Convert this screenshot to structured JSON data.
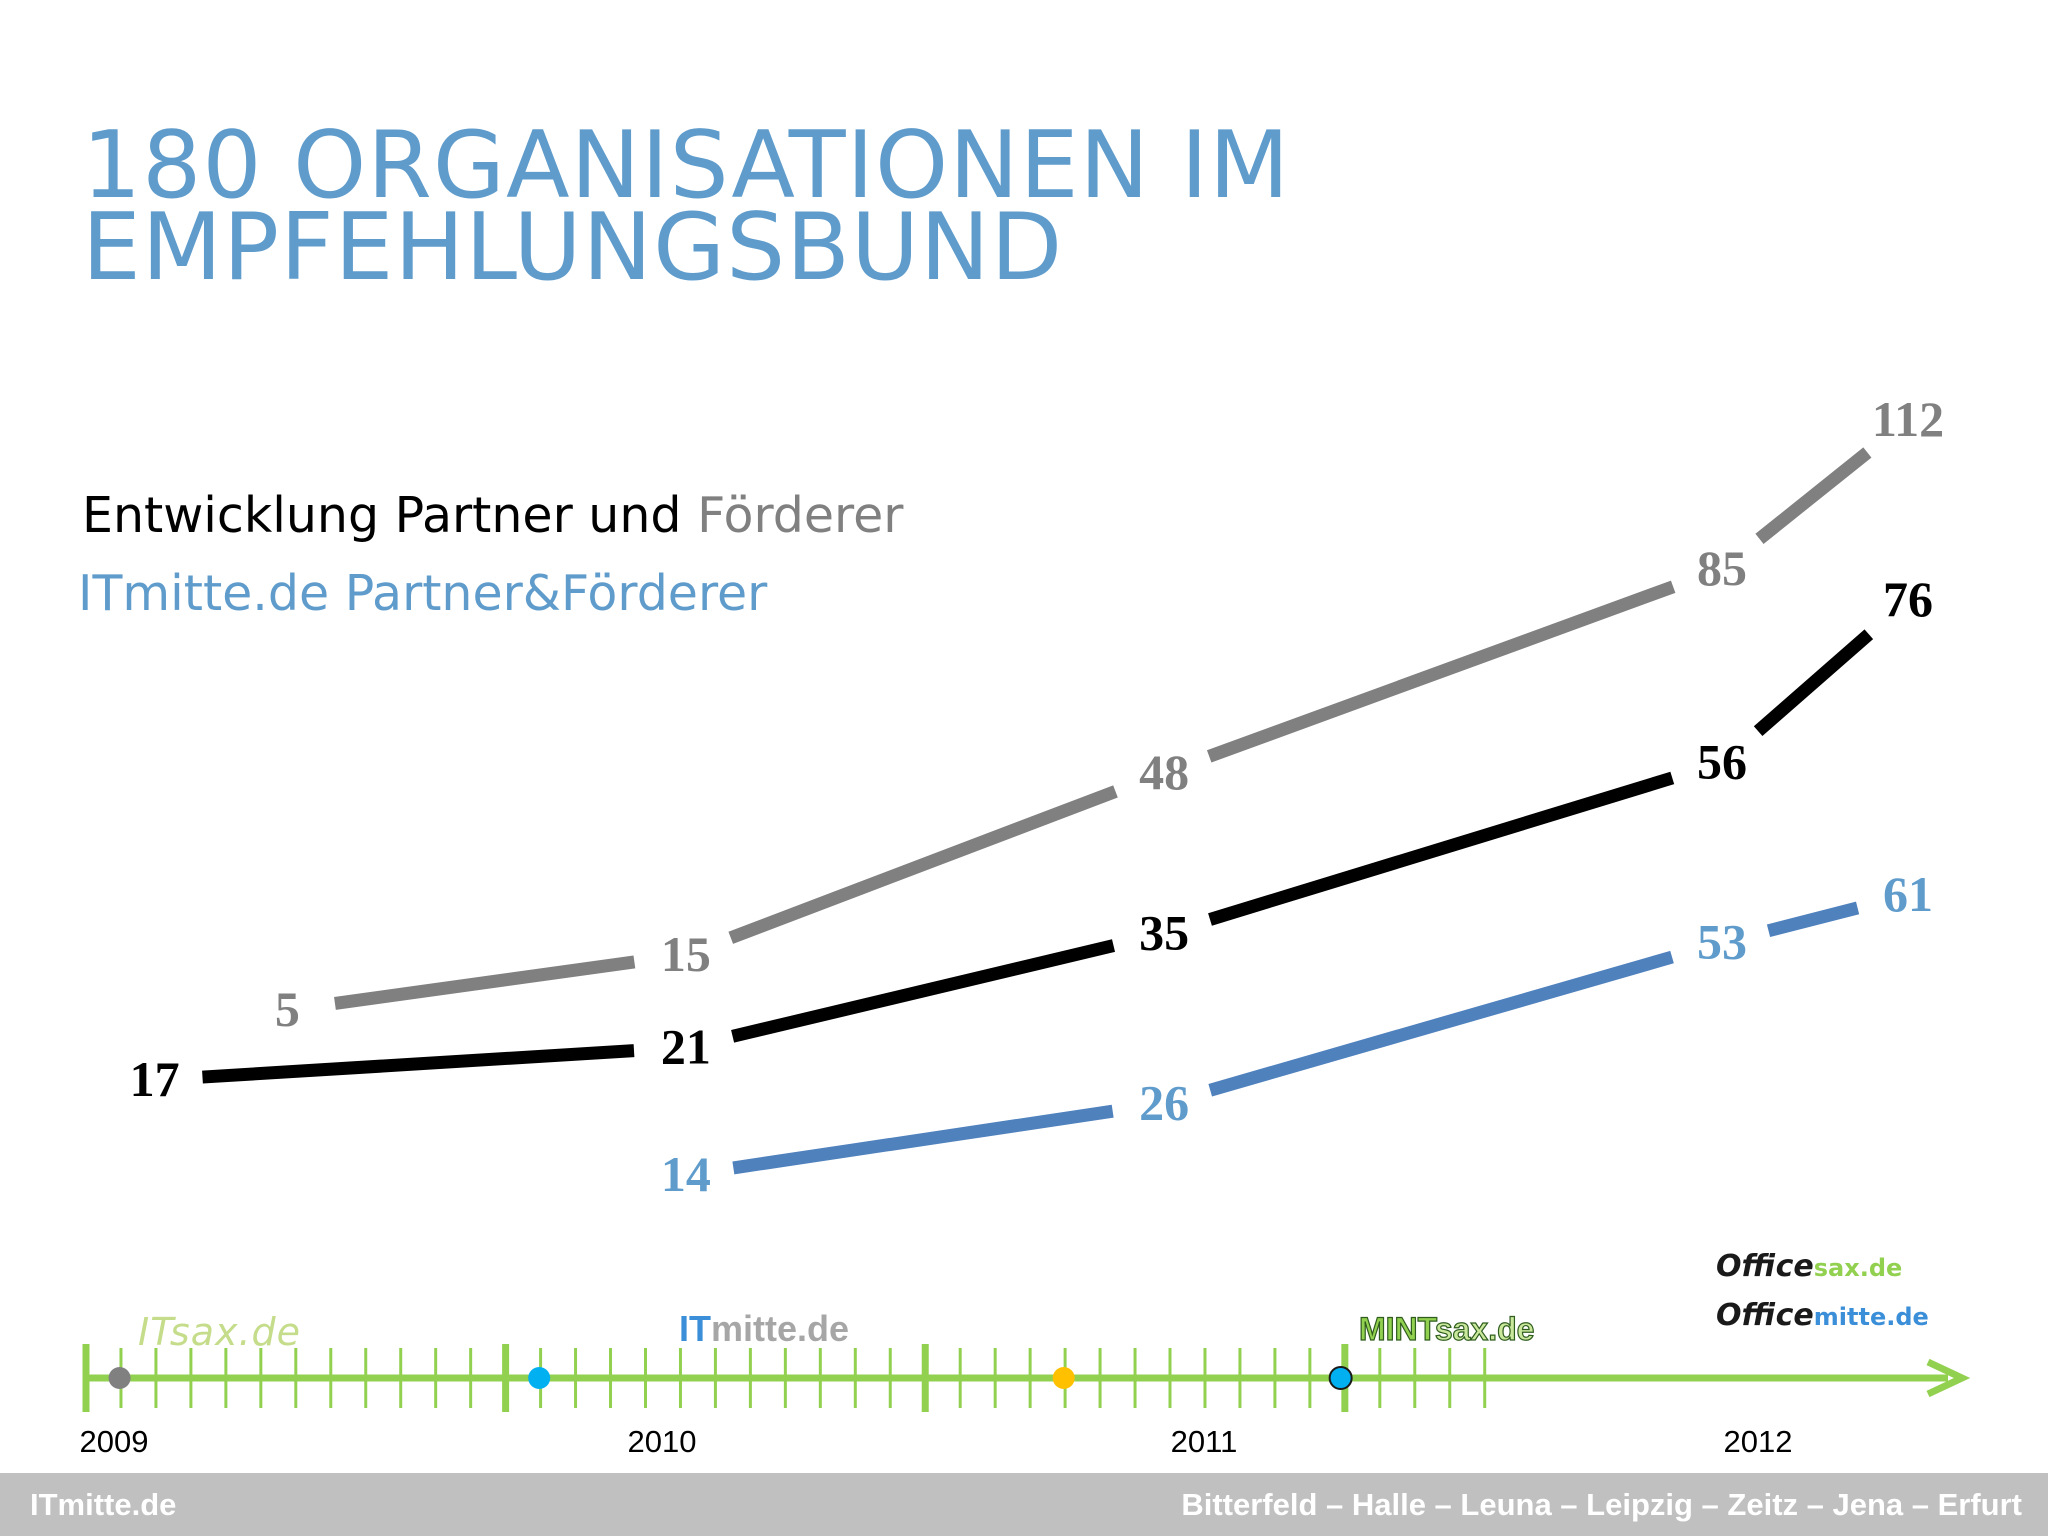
{
  "title": {
    "line1": "180 ORGANISATIONEN IM",
    "line2": "EMPFEHLUNGSBUND"
  },
  "heading": {
    "part1": "Entwicklung Partner und ",
    "part2": "Förderer"
  },
  "subheading": "ITmitte.de Partner&Förderer",
  "colors": {
    "title": "#5f9ccc",
    "foerderer": "#808080",
    "partner": "#000000",
    "itmitte": "#4f81bd",
    "itmitte_label": "#5f9ccc",
    "timeline": "#92d050",
    "footer_bg": "#c0c0c0"
  },
  "chart_data": {
    "type": "line",
    "x_unit": "year",
    "xlim": [
      2009,
      2012.4
    ],
    "series": [
      {
        "name": "Förderer",
        "points": [
          {
            "x": 2009.3,
            "y": 5,
            "label": "5"
          },
          {
            "x": 2010.05,
            "y": 15,
            "label": "15"
          },
          {
            "x": 2010.95,
            "y": 48,
            "label": "48"
          },
          {
            "x": 2012.0,
            "y": 85,
            "label": "85"
          },
          {
            "x": 2012.35,
            "y": 112,
            "label": "112"
          }
        ]
      },
      {
        "name": "Partner",
        "points": [
          {
            "x": 2009.05,
            "y": 17,
            "label": "17"
          },
          {
            "x": 2010.05,
            "y": 21,
            "label": "21"
          },
          {
            "x": 2010.95,
            "y": 35,
            "label": "35"
          },
          {
            "x": 2012.0,
            "y": 56,
            "label": "56"
          },
          {
            "x": 2012.35,
            "y": 76,
            "label": "76"
          }
        ]
      },
      {
        "name": "ITmitte.de Partner&Förderer",
        "points": [
          {
            "x": 2010.05,
            "y": 14,
            "label": "14"
          },
          {
            "x": 2010.95,
            "y": 26,
            "label": "26"
          },
          {
            "x": 2012.0,
            "y": 53,
            "label": "53"
          },
          {
            "x": 2012.35,
            "y": 61,
            "label": "61"
          }
        ]
      }
    ]
  },
  "timeline": {
    "years": [
      "2009",
      "2010",
      "2011",
      "2012"
    ],
    "milestones": [
      {
        "name": "ITsax.de",
        "x": 2009.08,
        "color": "#808080"
      },
      {
        "name": "ITmitte.de",
        "x": 2010.08,
        "color": "#00b0f0"
      },
      {
        "name": "MINTsax.de",
        "x": 2011.33,
        "color": "#ffc000"
      },
      {
        "name": "officesax.de / officemitte.de",
        "x": 2011.99,
        "color": "#00b0f0"
      }
    ],
    "logos": {
      "itsax": "ITsax.de",
      "itmitte_it": "IT",
      "itmitte_rest": "mitte.de",
      "mintsax_mint": "MINT",
      "mintsax_rest": "sax.de",
      "officesax_office": "Office",
      "officesax_rest": "sax.de",
      "officemitte_office": "Office",
      "officemitte_rest": "mitte.de"
    }
  },
  "footer": {
    "left": "ITmitte.de",
    "right": "Bitterfeld – Halle – Leuna – Leipzig – Zeitz – Jena – Erfurt"
  }
}
